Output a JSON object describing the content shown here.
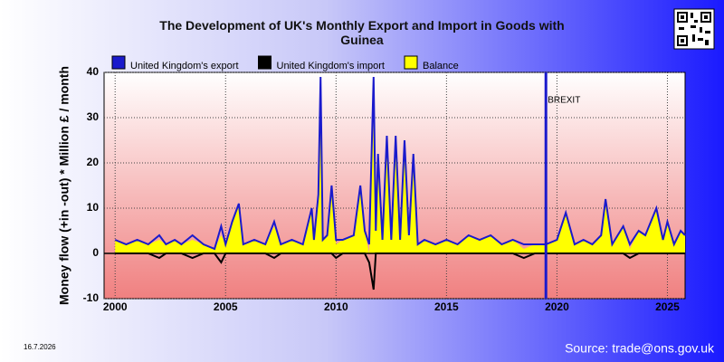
{
  "chart_data": {
    "type": "line",
    "title": "The Development of UK's Monthly Export and Import in Goods with Guinea",
    "y_label": "Money flow (+in -out) * Million £ / month",
    "date": "16.7.2026",
    "source": "Source: trade@ons.gov.uk",
    "annotations": [
      {
        "x": 2019.5,
        "text": "BREXIT",
        "color": "#1a1acc"
      }
    ],
    "x": [
      2000,
      2000.5,
      2001,
      2001.5,
      2002,
      2002.3,
      2002.7,
      2003,
      2003.5,
      2004,
      2004.5,
      2004.8,
      2005,
      2005.3,
      2005.6,
      2005.8,
      2006.3,
      2006.8,
      2007.2,
      2007.5,
      2008,
      2008.5,
      2008.9,
      2009.0,
      2009.2,
      2009.3,
      2009.4,
      2009.6,
      2009.8,
      2010.0,
      2010.3,
      2010.8,
      2011.1,
      2011.3,
      2011.5,
      2011.7,
      2011.8,
      2011.9,
      2012.1,
      2012.3,
      2012.5,
      2012.7,
      2012.9,
      2013.1,
      2013.3,
      2013.5,
      2013.7,
      2014,
      2014.5,
      2015,
      2015.5,
      2016,
      2016.5,
      2017,
      2017.5,
      2018,
      2018.5,
      2019,
      2019.5,
      2020,
      2020.4,
      2020.8,
      2021.2,
      2021.6,
      2022,
      2022.2,
      2022.5,
      2023,
      2023.3,
      2023.7,
      2024,
      2024.5,
      2024.8,
      2025,
      2025.3,
      2025.6,
      2025.8
    ],
    "series": [
      {
        "name": "United Kingdom's export",
        "color": "#1a1acc",
        "kind": "line",
        "values": [
          3,
          2,
          3,
          2,
          4,
          2,
          3,
          2,
          4,
          2,
          1,
          6,
          2,
          7,
          11,
          2,
          3,
          2,
          7,
          2,
          3,
          2,
          10,
          3,
          13,
          39,
          3,
          4,
          15,
          3,
          3,
          4,
          15,
          5,
          2,
          39,
          5,
          22,
          3,
          26,
          3,
          26,
          3,
          25,
          4,
          22,
          2,
          3,
          2,
          3,
          2,
          4,
          3,
          4,
          2,
          3,
          2,
          2,
          2,
          3,
          9,
          2,
          3,
          2,
          4,
          12,
          2,
          6,
          2,
          5,
          4,
          10,
          3,
          7,
          2,
          5,
          4
        ]
      },
      {
        "name": "United Kingdom's import",
        "color": "#000000",
        "kind": "line",
        "values": [
          0,
          0,
          0,
          0,
          -1,
          0,
          0,
          0,
          -1,
          0,
          0,
          -2,
          0,
          0,
          0,
          0,
          0,
          0,
          -1,
          0,
          0,
          0,
          0,
          0,
          0,
          0,
          0,
          0,
          0,
          -1,
          0,
          0,
          0,
          0,
          -2,
          -8,
          0,
          0,
          0,
          0,
          0,
          0,
          0,
          0,
          0,
          0,
          0,
          0,
          0,
          0,
          0,
          0,
          0,
          0,
          0,
          0,
          -1,
          0,
          0,
          0,
          0,
          0,
          0,
          0,
          0,
          0,
          0,
          0,
          -1,
          0,
          0,
          0,
          0,
          0,
          0,
          0,
          0
        ]
      },
      {
        "name": "Balance",
        "color": "#ffff00",
        "kind": "area",
        "values": [
          3,
          2,
          3,
          2,
          3,
          2,
          3,
          2,
          3,
          2,
          1,
          4,
          2,
          7,
          11,
          2,
          3,
          2,
          6,
          2,
          3,
          2,
          10,
          3,
          13,
          39,
          3,
          4,
          15,
          2,
          3,
          4,
          15,
          5,
          0,
          31,
          5,
          22,
          3,
          26,
          3,
          26,
          3,
          25,
          4,
          22,
          2,
          3,
          2,
          3,
          2,
          4,
          3,
          4,
          2,
          3,
          1,
          2,
          2,
          3,
          9,
          2,
          3,
          2,
          4,
          12,
          2,
          6,
          1,
          5,
          4,
          10,
          3,
          7,
          2,
          5,
          4
        ]
      }
    ],
    "xlim": [
      1999.5,
      2025.8
    ],
    "xticks": [
      2000,
      2005,
      2010,
      2015,
      2020,
      2025
    ],
    "ylim": [
      -10,
      40
    ],
    "yticks": [
      -10,
      0,
      10,
      20,
      30,
      40
    ],
    "grid": true
  }
}
